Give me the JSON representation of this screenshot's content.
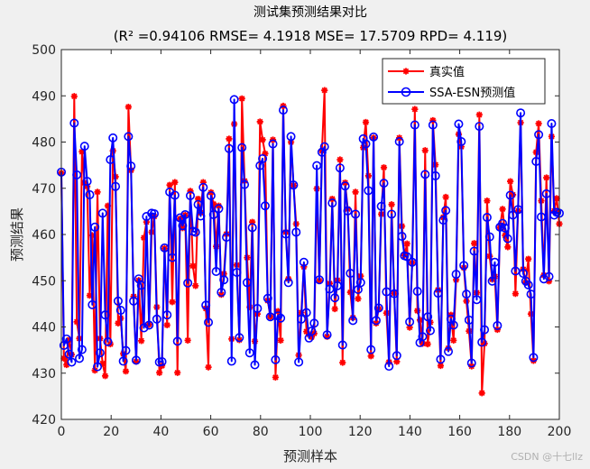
{
  "chart_data": {
    "type": "line",
    "title": "测试集预测结果对比",
    "subtitle_metrics": "(R² =0.94106 RMSE= 4.1918 MSE= 17.5709 RPD= 4.119)",
    "xlabel": "预测样本",
    "ylabel": "预测结果",
    "xlim": [
      0,
      200
    ],
    "ylim": [
      420,
      500
    ],
    "xticks": [
      0,
      20,
      40,
      60,
      80,
      100,
      120,
      140,
      160,
      180,
      200
    ],
    "yticks": [
      420,
      430,
      440,
      450,
      460,
      470,
      480,
      490,
      500
    ],
    "legend_position": "top-right",
    "grid": false,
    "series": [
      {
        "name": "真实值",
        "color": "#ff0000",
        "marker": "asterisk",
        "values": [
          473.3,
          433.2,
          431.8,
          437.2,
          434.0,
          489.9,
          441.1,
          437.5,
          477.9,
          471.2,
          470.4,
          446.8,
          459.8,
          430.6,
          469.2,
          437.5,
          432.1,
          429.4,
          466.2,
          436.3,
          478.1,
          472.5,
          440.8,
          441.9,
          434.2,
          430.4,
          487.6,
          473.9,
          446.6,
          432.5,
          450.1,
          437.0,
          459.3,
          462.7,
          440.5,
          460.5,
          463.9,
          444.3,
          430.1,
          431.6,
          457.0,
          440.4,
          470.7,
          445.4,
          471.3,
          430.1,
          463.4,
          461.4,
          464.2,
          437.1,
          469.4,
          453.2,
          448.9,
          467.7,
          464.7,
          471.3,
          444.0,
          431.3,
          469.1,
          466.6,
          457.4,
          466.2,
          447.0,
          451.5,
          460.1,
          480.7,
          437.4,
          483.9,
          453.4,
          437.2,
          489.4,
          471.6,
          455.0,
          444.3,
          462.7,
          436.9,
          442.8,
          484.4,
          480.5,
          477.5,
          445.7,
          442.2,
          480.5,
          429.1,
          443.4,
          437.1,
          487.8,
          460.5,
          450.4,
          480.0,
          470.6,
          462.3,
          433.9,
          443.1,
          453.0,
          439.0,
          438.4,
          437.8,
          438.6,
          469.9,
          450.0,
          478.1,
          491.2,
          437.9,
          449.4,
          467.7,
          443.9,
          450.1,
          476.2,
          432.3,
          471.2,
          465.5,
          447.5,
          442.0,
          469.2,
          446.1,
          451.0,
          478.8,
          484.3,
          472.7,
          433.7,
          480.9,
          440.8,
          443.9,
          464.4,
          474.5,
          443.0,
          432.4,
          466.5,
          447.3,
          432.5,
          480.9,
          461.8,
          455.5,
          458.0,
          439.9,
          453.9,
          487.1,
          443.5,
          441.5,
          436.4,
          478.2,
          436.3,
          441.0,
          484.7,
          475.1,
          448.0,
          431.6,
          463.7,
          468.1,
          435.4,
          442.6,
          437.1,
          450.2,
          481.7,
          479.0,
          452.8,
          445.6,
          439.1,
          431.5,
          458.1,
          447.4,
          485.9,
          425.7,
          436.4,
          467.3,
          455.3,
          450.3,
          450.9,
          439.4,
          461.5,
          465.5,
          459.8,
          457.3,
          471.5,
          468.6,
          447.2,
          465.1,
          484.2,
          452.5,
          449.6,
          454.7,
          442.8,
          432.7,
          477.8,
          484.0,
          467.3,
          451.2,
          472.3,
          449.9,
          481.2,
          465.1,
          467.8,
          462.3
        ]
      },
      {
        "name": "SSA-ESN预测值",
        "color": "#0000ff",
        "marker": "circle",
        "values": [
          473.5,
          436.0,
          437.4,
          434.1,
          432.4,
          484.1,
          472.9,
          433.2,
          435.1,
          479.1,
          471.5,
          468.6,
          444.8,
          461.6,
          431.4,
          434.4,
          464.6,
          442.6,
          436.8,
          476.2,
          480.9,
          470.4,
          445.6,
          443.6,
          432.6,
          434.9,
          481.2,
          474.8,
          445.6,
          432.8,
          450.4,
          449.0,
          439.8,
          463.9,
          440.4,
          464.6,
          464.5,
          441.7,
          432.4,
          432.5,
          457.1,
          442.6,
          469.2,
          455.0,
          468.5,
          436.9,
          463.6,
          461.9,
          464.3,
          449.5,
          468.4,
          460.7,
          460.5,
          466.5,
          464.0,
          470.2,
          444.7,
          441.0,
          468.4,
          464.3,
          452.0,
          465.6,
          447.5,
          450.2,
          459.4,
          478.6,
          432.6,
          489.2,
          451.8,
          437.7,
          478.8,
          470.8,
          449.6,
          434.4,
          461.5,
          431.8,
          444.0,
          474.9,
          476.4,
          466.2,
          446.2,
          442.2,
          479.6,
          432.9,
          442.4,
          441.9,
          486.9,
          460.1,
          449.6,
          481.2,
          470.7,
          460.5,
          432.4,
          441.7,
          454.0,
          443.1,
          437.6,
          439.1,
          440.8,
          474.9,
          450.2,
          477.8,
          479.0,
          438.3,
          448.2,
          466.8,
          446.3,
          448.9,
          474.4,
          436.1,
          470.5,
          465.1,
          451.6,
          441.4,
          464.4,
          448.1,
          449.6,
          480.7,
          479.6,
          469.5,
          435.1,
          481.1,
          441.4,
          444.1,
          466.1,
          471.1,
          447.6,
          431.5,
          464.4,
          447.2,
          433.8,
          480.1,
          459.6,
          455.4,
          455.2,
          441.1,
          454.0,
          483.7,
          447.7,
          436.6,
          437.9,
          473.0,
          442.2,
          439.2,
          483.7,
          472.7,
          447.3,
          433.0,
          463.1,
          465.2,
          434.7,
          441.7,
          440.4,
          451.4,
          483.9,
          480.1,
          453.3,
          447.1,
          441.5,
          432.2,
          456.4,
          445.9,
          483.4,
          436.7,
          439.4,
          463.7,
          459.5,
          449.9,
          454.0,
          440.3,
          461.6,
          462.4,
          461.4,
          459.1,
          468.5,
          464.2,
          452.1,
          465.4,
          486.3,
          451.6,
          449.9,
          449.1,
          447.1,
          433.4,
          475.8,
          481.6,
          463.8,
          450.4,
          468.8,
          450.9,
          484.0,
          464.2,
          464.8,
          464.6
        ]
      }
    ],
    "watermark": "CSDN @十七llz"
  }
}
